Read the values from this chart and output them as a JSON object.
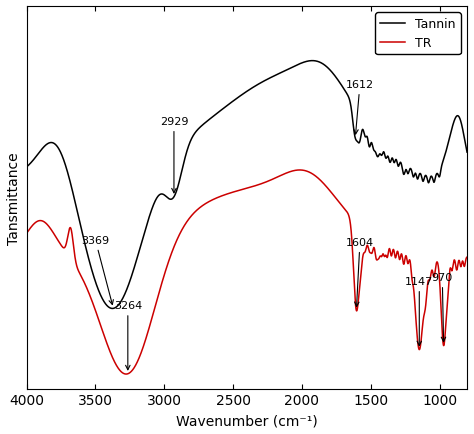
{
  "xlabel": "Wavenumber (cm⁻¹)",
  "ylabel": "Tansmittance",
  "xlim": [
    4000,
    800
  ],
  "background_color": "#ffffff",
  "tannin_color": "#000000",
  "tr_color": "#cc0000",
  "legend_entries": [
    "Tannin",
    "TR"
  ],
  "fontsize_label": 10,
  "fontsize_annot": 8,
  "xticks": [
    4000,
    3500,
    3000,
    2500,
    2000,
    1500,
    1000
  ]
}
